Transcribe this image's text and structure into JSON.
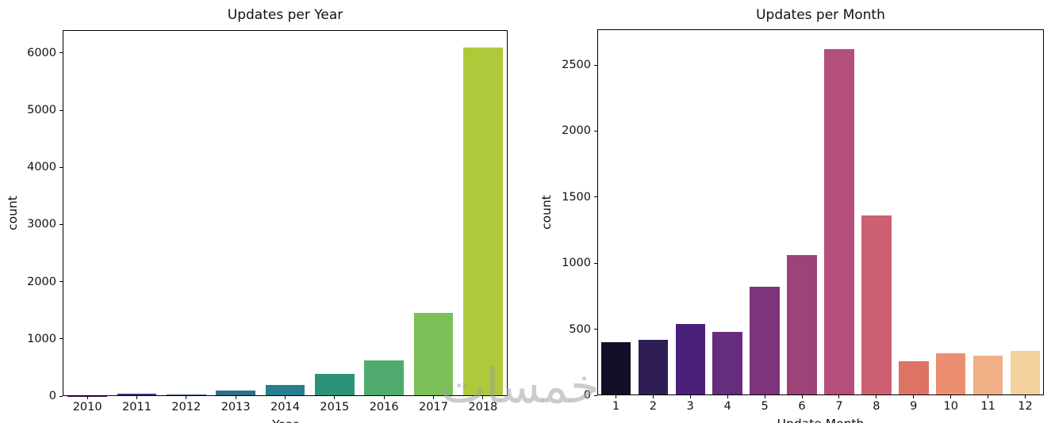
{
  "watermark": {
    "text": "خمسات"
  },
  "chart_data": [
    {
      "type": "bar",
      "title": "Updates per Year",
      "xlabel": "Year",
      "ylabel": "count",
      "categories": [
        "2010",
        "2011",
        "2012",
        "2013",
        "2014",
        "2015",
        "2016",
        "2017",
        "2018"
      ],
      "values": [
        5,
        35,
        30,
        95,
        195,
        385,
        630,
        1460,
        6100
      ],
      "ylim": [
        0,
        6400
      ],
      "yticks": [
        0,
        1000,
        2000,
        3000,
        4000,
        5000,
        6000
      ],
      "grid": false,
      "palette": [
        "#46085c",
        "#46327e",
        "#365c8d",
        "#2d708e",
        "#277f8e",
        "#2c9278",
        "#4fab6d",
        "#7cc059",
        "#aeca3b"
      ]
    },
    {
      "type": "bar",
      "title": "Updates per Month",
      "xlabel": "Update Month",
      "ylabel": "count",
      "categories": [
        "1",
        "2",
        "3",
        "4",
        "5",
        "6",
        "7",
        "8",
        "9",
        "10",
        "11",
        "12"
      ],
      "values": [
        400,
        420,
        540,
        480,
        820,
        1060,
        2620,
        1360,
        260,
        320,
        300,
        335
      ],
      "ylim": [
        0,
        2770
      ],
      "yticks": [
        0,
        500,
        1000,
        1500,
        2000,
        2500
      ],
      "grid": false,
      "palette": [
        "#150e29",
        "#2e1e54",
        "#4b2079",
        "#662d7d",
        "#7d347a",
        "#9d4378",
        "#b44e7a",
        "#cd6070",
        "#de7365",
        "#eb8f70",
        "#f1af85",
        "#f4d09c"
      ]
    }
  ]
}
